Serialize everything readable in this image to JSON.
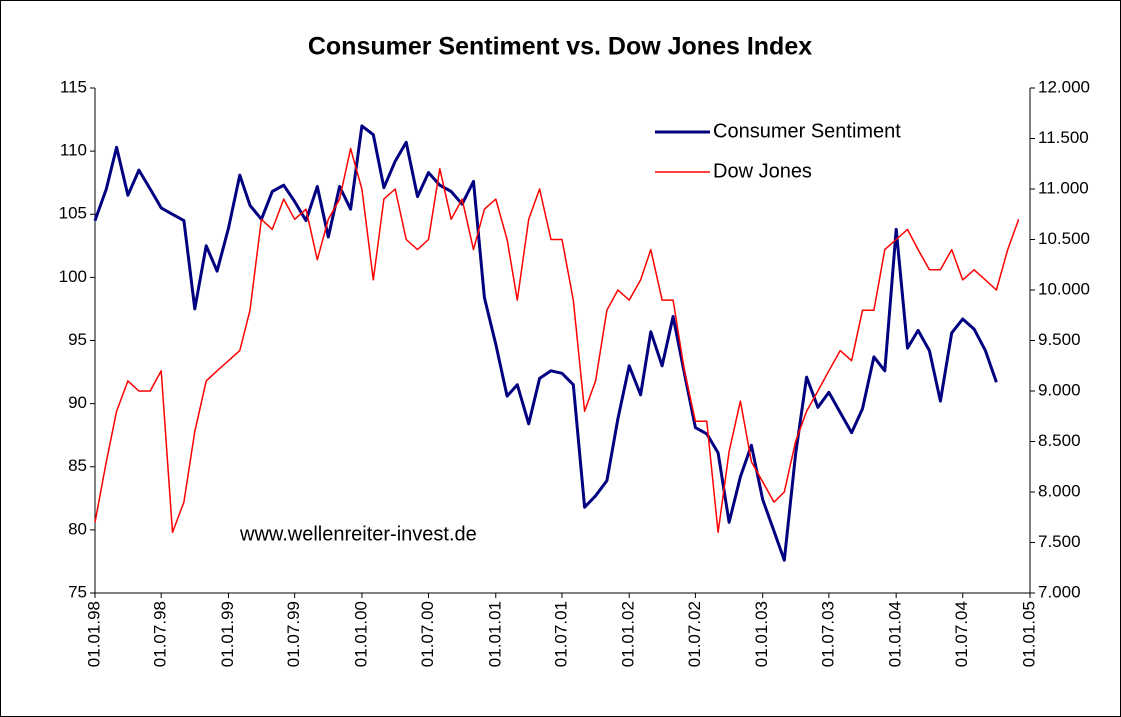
{
  "chart_data": {
    "type": "line",
    "title": "Consumer Sentiment vs. Dow Jones Index",
    "annotation": "www.wellenreiter-invest.de",
    "legend": "upper right",
    "x": [
      "1998-01-01",
      "1998-02-01",
      "1998-03-01",
      "1998-04-01",
      "1998-05-01",
      "1998-06-01",
      "1998-07-01",
      "1998-08-01",
      "1998-09-01",
      "1998-10-01",
      "1998-11-01",
      "1998-12-01",
      "1999-01-01",
      "1999-02-01",
      "1999-03-01",
      "1999-04-01",
      "1999-05-01",
      "1999-06-01",
      "1999-07-01",
      "1999-08-01",
      "1999-09-01",
      "1999-10-01",
      "1999-11-01",
      "1999-12-01",
      "2000-01-01",
      "2000-02-01",
      "2000-03-01",
      "2000-04-01",
      "2000-05-01",
      "2000-06-01",
      "2000-07-01",
      "2000-08-01",
      "2000-09-01",
      "2000-10-01",
      "2000-11-01",
      "2000-12-01",
      "2001-01-01",
      "2001-02-01",
      "2001-03-01",
      "2001-04-01",
      "2001-05-01",
      "2001-06-01",
      "2001-07-01",
      "2001-08-01",
      "2001-09-01",
      "2001-10-01",
      "2001-11-01",
      "2001-12-01",
      "2002-01-01",
      "2002-02-01",
      "2002-03-01",
      "2002-04-01",
      "2002-05-01",
      "2002-06-01",
      "2002-07-01",
      "2002-08-01",
      "2002-09-01",
      "2002-10-01",
      "2002-11-01",
      "2002-12-01",
      "2003-01-01",
      "2003-02-01",
      "2003-03-01",
      "2003-04-01",
      "2003-05-01",
      "2003-06-01",
      "2003-07-01",
      "2003-08-01",
      "2003-09-01",
      "2003-10-01",
      "2003-11-01",
      "2003-12-01",
      "2004-01-01",
      "2004-02-01",
      "2004-03-01",
      "2004-04-01",
      "2004-05-01",
      "2004-06-01",
      "2004-07-01",
      "2004-08-01",
      "2004-09-01",
      "2004-10-01",
      "2004-11-01",
      "2004-12-01"
    ],
    "series": [
      {
        "name": "Consumer Sentiment",
        "color": "#000080",
        "axis": "y",
        "values": [
          104.5,
          107,
          110.3,
          106.5,
          108.5,
          107,
          105.5,
          105,
          104.5,
          97.5,
          102.5,
          100.5,
          103.9,
          108.1,
          105.7,
          104.6,
          106.8,
          107.3,
          106,
          104.5,
          107.2,
          103.2,
          107.2,
          105.4,
          112,
          111.3,
          107.1,
          109.2,
          110.7,
          106.4,
          108.3,
          107.3,
          106.8,
          105.8,
          107.6,
          98.4,
          94.7,
          90.6,
          91.5,
          88.4,
          92,
          92.6,
          92.4,
          91.5,
          81.8,
          82.7,
          83.9,
          88.8,
          93,
          90.7,
          95.7,
          93,
          96.9,
          92.4,
          88.1,
          87.6,
          86.1,
          80.6,
          84.2,
          86.7,
          82.4,
          79.9,
          77.6,
          86,
          92.1,
          89.7,
          90.9,
          89.3,
          87.7,
          89.6,
          93.7,
          92.6,
          103.8,
          94.4,
          95.8,
          94.2,
          90.2,
          95.6,
          96.7,
          95.9,
          94.2,
          91.7,
          null,
          null
        ]
      },
      {
        "name": "Dow Jones",
        "color": "#ff0000",
        "axis": "y2",
        "values": [
          7700,
          8300,
          8800,
          9100,
          9000,
          9000,
          9200,
          7600,
          7900,
          8600,
          9100,
          9200,
          9300,
          9400,
          9800,
          10700,
          10600,
          10900,
          10700,
          10800,
          10300,
          10700,
          10900,
          11400,
          11000,
          10100,
          10900,
          11000,
          10500,
          10400,
          10500,
          11200,
          10700,
          10900,
          10400,
          10800,
          10900,
          10500,
          9900,
          10700,
          11000,
          10500,
          10500,
          9900,
          8800,
          9100,
          9800,
          10000,
          9900,
          10100,
          10400,
          9900,
          9900,
          9200,
          8700,
          8700,
          7600,
          8400,
          8900,
          8300,
          8100,
          7900,
          8000,
          8500,
          8800,
          9000,
          9200,
          9400,
          9300,
          9800,
          9800,
          10400,
          10500,
          10600,
          10400,
          10200,
          10200,
          10400,
          10100,
          10200,
          10100,
          10000,
          10400,
          10700
        ]
      }
    ],
    "xlim": [
      "1998-01-01",
      "2005-01-01"
    ],
    "xticks": [
      {
        "value": "1998-01-01",
        "label": "01.01.98"
      },
      {
        "value": "1998-07-01",
        "label": "01.07.98"
      },
      {
        "value": "1999-01-01",
        "label": "01.01.99"
      },
      {
        "value": "1999-07-01",
        "label": "01.07.99"
      },
      {
        "value": "2000-01-01",
        "label": "01.01.00"
      },
      {
        "value": "2000-07-01",
        "label": "01.07.00"
      },
      {
        "value": "2001-01-01",
        "label": "01.01.01"
      },
      {
        "value": "2001-07-01",
        "label": "01.07.01"
      },
      {
        "value": "2002-01-01",
        "label": "01.01.02"
      },
      {
        "value": "2002-07-01",
        "label": "01.07.02"
      },
      {
        "value": "2003-01-01",
        "label": "01.01.03"
      },
      {
        "value": "2003-07-01",
        "label": "01.07.03"
      },
      {
        "value": "2004-01-01",
        "label": "01.01.04"
      },
      {
        "value": "2004-07-01",
        "label": "01.07.04"
      },
      {
        "value": "2005-01-01",
        "label": "01.01.05"
      }
    ],
    "ylim": [
      75,
      115
    ],
    "yticks": [
      75,
      80,
      85,
      90,
      95,
      100,
      105,
      110,
      115
    ],
    "y2lim": [
      7000,
      12000
    ],
    "y2ticks": [
      {
        "value": 7000,
        "label": "7.000"
      },
      {
        "value": 7500,
        "label": "7.500"
      },
      {
        "value": 8000,
        "label": "8.000"
      },
      {
        "value": 8500,
        "label": "8.500"
      },
      {
        "value": 9000,
        "label": "9.000"
      },
      {
        "value": 9500,
        "label": "9.500"
      },
      {
        "value": 10000,
        "label": "10.000"
      },
      {
        "value": 10500,
        "label": "10.500"
      },
      {
        "value": 11000,
        "label": "11.000"
      },
      {
        "value": 11500,
        "label": "11.500"
      },
      {
        "value": 12000,
        "label": "12.000"
      }
    ],
    "grid": false
  }
}
